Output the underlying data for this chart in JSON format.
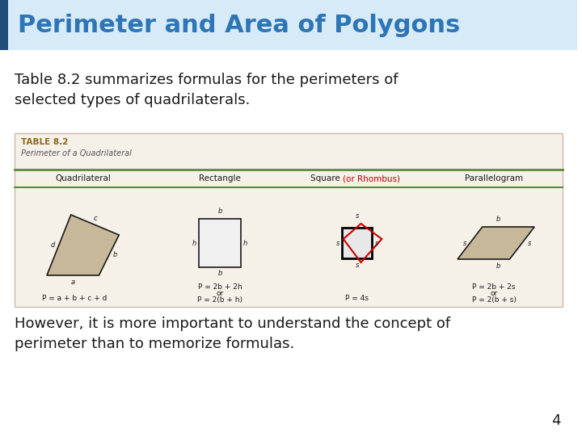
{
  "title": "Perimeter and Area of Polygons",
  "title_color": "#2E75B6",
  "title_bg_color": "#D6EAF8",
  "title_bar_color": "#1F4E79",
  "body_bg": "#FFFFFF",
  "text1": "Table 8.2 summarizes formulas for the perimeters of\nselected types of quadrilaterals.",
  "text1_color": "#1a1a1a",
  "table_bg": "#F5F0E8",
  "table_header_bg": "#F5F0E8",
  "table_title": "TABLE 8.2",
  "table_subtitle": "Perimeter of a Quadrilateral",
  "table_title_color": "#8B6914",
  "table_subtitle_color": "#555555",
  "col_headers": [
    "Quadrilateral",
    "Rectangle",
    "Square (or Rhombus)",
    "Parallelogram"
  ],
  "col_header_color": "#1a1a1a",
  "highlight_color": "#CC0000",
  "table_line_color": "#5B8A3C",
  "formula_quad": "P = a + b + c + d",
  "formula_rect1": "P = 2b + 2h",
  "formula_rect2": "or",
  "formula_rect3": "P = 2(b + h)",
  "formula_sq": "P = 4s",
  "formula_para1": "P = 2b + 2s",
  "formula_para2": "or",
  "formula_para3": "P = 2(b + s)",
  "text2": "However, it is more important to understand the concept of\nperimeter than to memorize formulas.",
  "text2_color": "#1a1a1a",
  "page_num": "4",
  "shape_color": "#c8b89a",
  "shape_line_color": "#1a1a1a"
}
